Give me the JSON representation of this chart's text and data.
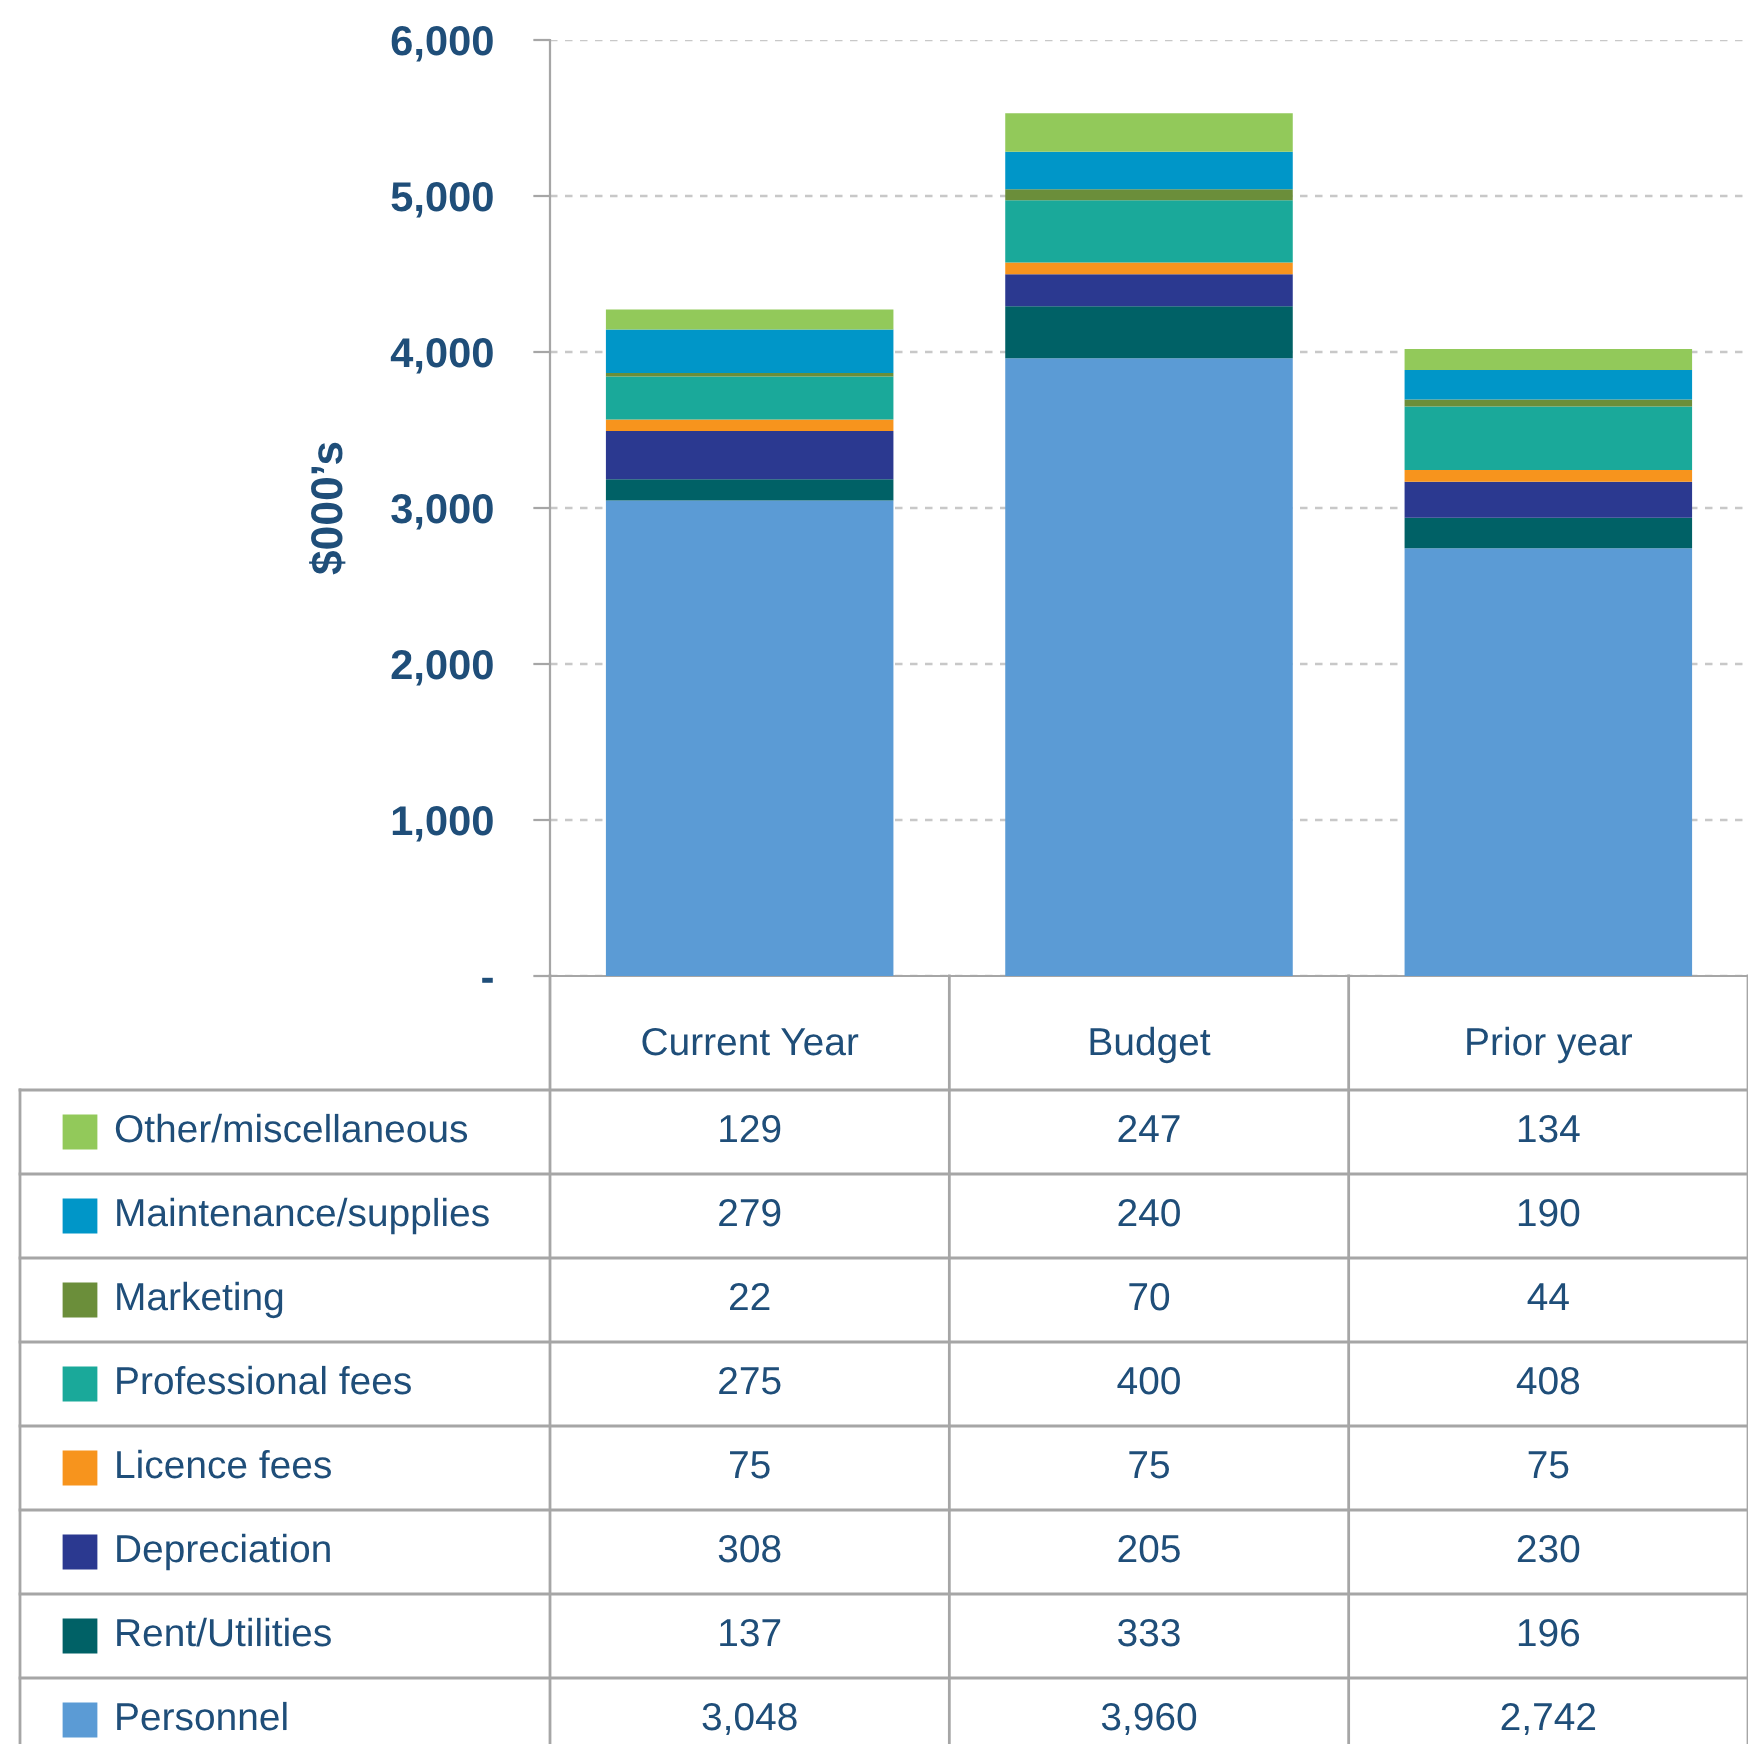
{
  "chart_data": {
    "type": "bar",
    "stacked": true,
    "ylabel": "$000’s",
    "categories": [
      "Current Year",
      "Budget",
      "Prior year"
    ],
    "series": [
      {
        "name": "Personnel",
        "color": "#5b9bd5",
        "values": [
          3048,
          3960,
          2742
        ],
        "value_labels": [
          "3,048",
          "3,960",
          "2,742"
        ]
      },
      {
        "name": "Rent/Utilities",
        "color": "#006166",
        "values": [
          137,
          333,
          196
        ],
        "value_labels": [
          "137",
          "333",
          "196"
        ]
      },
      {
        "name": "Depreciation",
        "color": "#2b3990",
        "values": [
          308,
          205,
          230
        ],
        "value_labels": [
          "308",
          "205",
          "230"
        ]
      },
      {
        "name": "Licence fees",
        "color": "#f7941d",
        "values": [
          75,
          75,
          75
        ],
        "value_labels": [
          "75",
          "75",
          "75"
        ]
      },
      {
        "name": "Professional fees",
        "color": "#1aa99a",
        "values": [
          275,
          400,
          408
        ],
        "value_labels": [
          "275",
          "400",
          "408"
        ]
      },
      {
        "name": "Marketing",
        "color": "#6b8e3a",
        "values": [
          22,
          70,
          44
        ],
        "value_labels": [
          "22",
          "70",
          "44"
        ]
      },
      {
        "name": "Maintenance/supplies",
        "color": "#0096c8",
        "values": [
          279,
          240,
          190
        ],
        "value_labels": [
          "279",
          "240",
          "190"
        ]
      },
      {
        "name": "Other/miscellaneous",
        "color": "#92c95a",
        "values": [
          129,
          247,
          134
        ],
        "value_labels": [
          "129",
          "247",
          "134"
        ]
      }
    ],
    "ylim": [
      0,
      6000
    ],
    "yticks": [
      {
        "value": 0,
        "label": "-"
      },
      {
        "value": 1000,
        "label": "1,000"
      },
      {
        "value": 2000,
        "label": "2,000"
      },
      {
        "value": 3000,
        "label": "3,000"
      },
      {
        "value": 4000,
        "label": "4,000"
      },
      {
        "value": 5000,
        "label": "5,000"
      },
      {
        "value": 6000,
        "label": "6,000"
      }
    ],
    "grid": "y",
    "legend": "bottom"
  }
}
